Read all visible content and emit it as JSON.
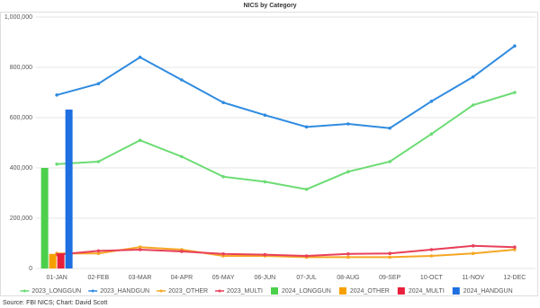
{
  "chart_data": {
    "type": "combo",
    "title": "NICS by Category",
    "categories": [
      "01-JAN",
      "02-FEB",
      "03-MAR",
      "04-APR",
      "05-MAY",
      "06-JUN",
      "07-JUL",
      "08-AUG",
      "09-SEP",
      "10-OCT",
      "11-NOV",
      "12-DEC"
    ],
    "ylim": [
      0,
      1000000
    ],
    "yticks": [
      0,
      {
        "value": 200000,
        "label": "200,000"
      },
      {
        "value": 400000,
        "label": "400,000"
      },
      {
        "value": 600000,
        "label": "600,000"
      },
      {
        "value": 800000,
        "label": "800,000"
      },
      {
        "value": 1000000,
        "label": "1,000,000"
      }
    ],
    "grid": true,
    "legend": "bottom",
    "series": [
      {
        "name": "2023_LONGGUN",
        "type": "line",
        "color": "#6cdc74",
        "values": [
          415000,
          425000,
          510000,
          445000,
          365000,
          345000,
          315000,
          385000,
          425000,
          535000,
          650000,
          700000
        ]
      },
      {
        "name": "2023_HANDGUN",
        "type": "line",
        "color": "#2f8be0",
        "values": [
          690000,
          735000,
          840000,
          750000,
          660000,
          610000,
          563000,
          575000,
          558000,
          665000,
          762000,
          885000
        ]
      },
      {
        "name": "2023_OTHER",
        "type": "line",
        "color": "#f5a623",
        "values": [
          60000,
          60000,
          85000,
          75000,
          50000,
          50000,
          45000,
          45000,
          45000,
          50000,
          60000,
          75000
        ]
      },
      {
        "name": "2023_MULTI",
        "type": "line",
        "color": "#e8405a",
        "values": [
          55000,
          70000,
          75000,
          68000,
          58000,
          55000,
          50000,
          58000,
          60000,
          75000,
          90000,
          85000
        ]
      },
      {
        "name": "2024_LONGGUN",
        "type": "bar",
        "color": "#4cd04c",
        "values": [
          400000,
          null,
          null,
          null,
          null,
          null,
          null,
          null,
          null,
          null,
          null,
          null
        ]
      },
      {
        "name": "2024_OTHER",
        "type": "bar",
        "color": "#f5a000",
        "values": [
          58000,
          null,
          null,
          null,
          null,
          null,
          null,
          null,
          null,
          null,
          null,
          null
        ]
      },
      {
        "name": "2024_MULTI",
        "type": "bar",
        "color": "#e8203c",
        "values": [
          60000,
          null,
          null,
          null,
          null,
          null,
          null,
          null,
          null,
          null,
          null,
          null
        ]
      },
      {
        "name": "2024_HANDGUN",
        "type": "bar",
        "color": "#1f6fe0",
        "values": [
          632000,
          null,
          null,
          null,
          null,
          null,
          null,
          null,
          null,
          null,
          null,
          null
        ]
      }
    ],
    "source": "Source: FBI NICS; Chart: David Scott"
  }
}
